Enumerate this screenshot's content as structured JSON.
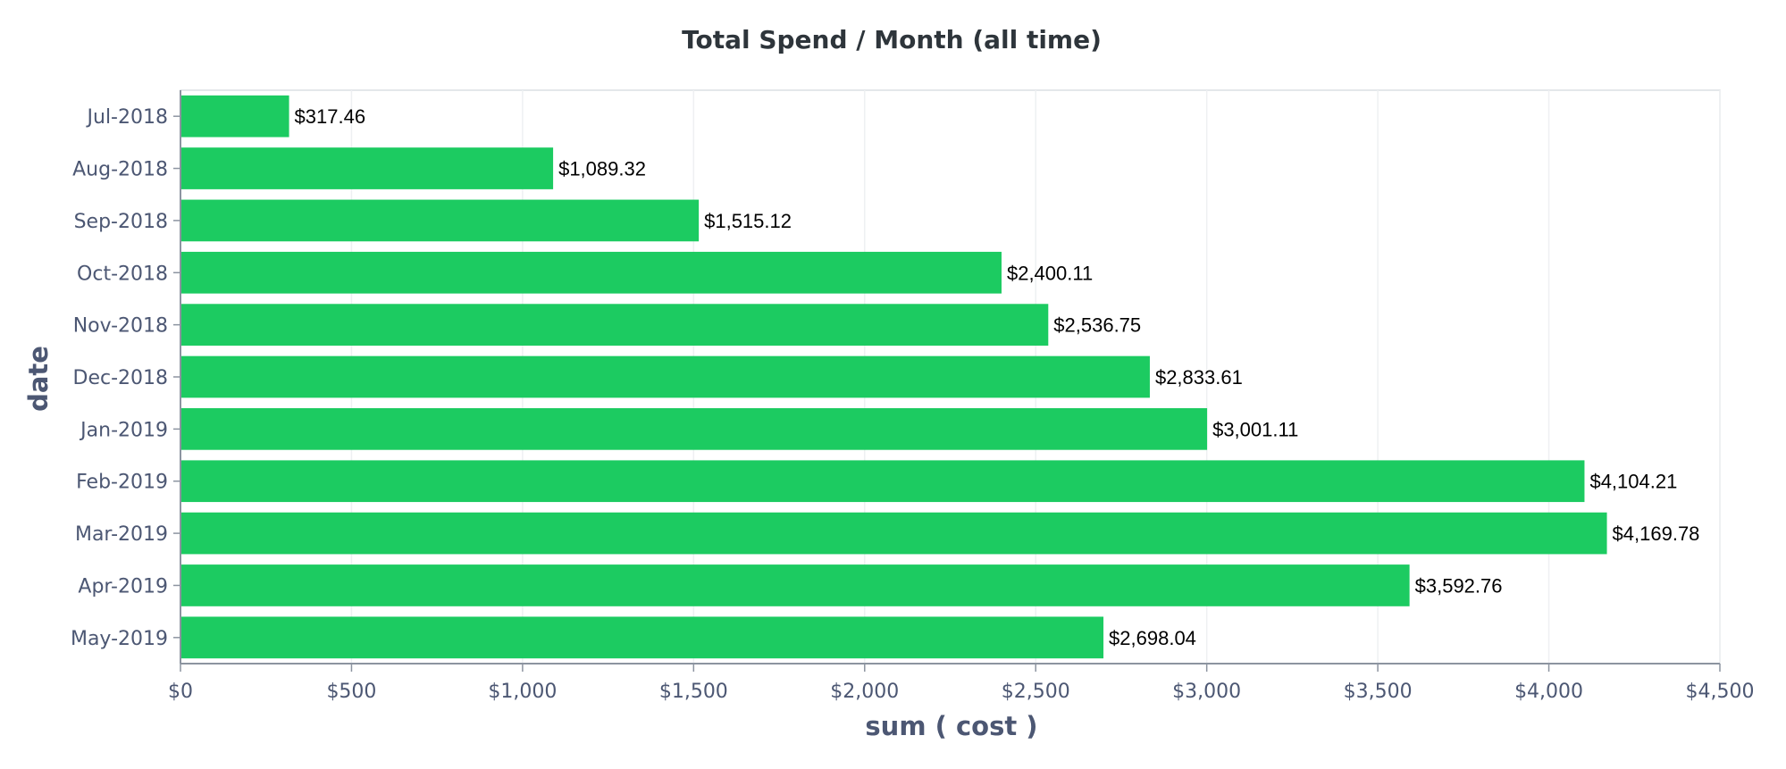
{
  "chart_data": {
    "type": "bar",
    "orientation": "horizontal",
    "title": "Total Spend / Month (all time)",
    "xlabel": "sum ( cost )",
    "ylabel": "date",
    "xlim": [
      0,
      4500
    ],
    "x_ticks": [
      0,
      500,
      1000,
      1500,
      2000,
      2500,
      3000,
      3500,
      4000,
      4500
    ],
    "x_tick_labels": [
      "$0",
      "$500",
      "$1,000",
      "$1,500",
      "$2,000",
      "$2,500",
      "$3,000",
      "$3,500",
      "$4,000",
      "$4,500"
    ],
    "grid": true,
    "bar_color": "#1ccb61",
    "categories": [
      "Jul-2018",
      "Aug-2018",
      "Sep-2018",
      "Oct-2018",
      "Nov-2018",
      "Dec-2018",
      "Jan-2019",
      "Feb-2019",
      "Mar-2019",
      "Apr-2019",
      "May-2019"
    ],
    "values": [
      317.46,
      1089.32,
      1515.12,
      2400.11,
      2536.75,
      2833.61,
      3001.11,
      4104.21,
      4169.78,
      3592.76,
      2698.04
    ],
    "value_labels": [
      "$317.46",
      "$1,089.32",
      "$1,515.12",
      "$2,400.11",
      "$2,536.75",
      "$2,833.61",
      "$3,001.11",
      "$4,104.21",
      "$4,169.78",
      "$3,592.76",
      "$2,698.04"
    ]
  }
}
